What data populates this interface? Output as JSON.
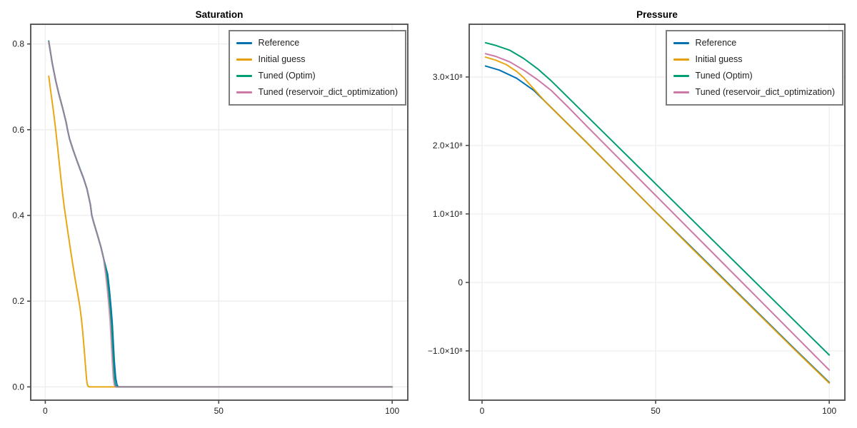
{
  "theme": {
    "background": "#ffffff",
    "spine_color": "#4b4b4b",
    "grid_color": "#ededed",
    "tick_color": "#4b4b4b",
    "text_color": "#1f1f1f",
    "legend_border_color": "#7d7d7d",
    "legend_background": "#ffffff"
  },
  "chart_data": [
    {
      "type": "line",
      "title": "Saturation",
      "xlabel": "",
      "ylabel": "",
      "xlim": [
        -4.2,
        104.5
      ],
      "ylim": [
        -0.031,
        0.846
      ],
      "grid": true,
      "legend_position": "top-right",
      "x_ticks": {
        "values": [
          0,
          50,
          100
        ],
        "labels": [
          "0",
          "50",
          "100"
        ]
      },
      "y_ticks": {
        "values": [
          0.0,
          0.2,
          0.4,
          0.6,
          0.8
        ],
        "labels": [
          "0.0",
          "0.2",
          "0.4",
          "0.6",
          "0.8"
        ]
      },
      "series": [
        {
          "name": "Reference",
          "color": "#0072B2",
          "width": 2,
          "opacity": 1,
          "points": [
            [
              1,
              0.805
            ],
            [
              2,
              0.755
            ],
            [
              3,
              0.714
            ],
            [
              4,
              0.68
            ],
            [
              5,
              0.65
            ],
            [
              6,
              0.617
            ],
            [
              6.4,
              0.6
            ],
            [
              7,
              0.578
            ],
            [
              8,
              0.553
            ],
            [
              9,
              0.53
            ],
            [
              10,
              0.508
            ],
            [
              11,
              0.487
            ],
            [
              12,
              0.462
            ],
            [
              13,
              0.425
            ],
            [
              13.4,
              0.4
            ],
            [
              14,
              0.382
            ],
            [
              15,
              0.355
            ],
            [
              16,
              0.327
            ],
            [
              16.8,
              0.3
            ],
            [
              18.0,
              0.262
            ],
            [
              18.5,
              0.225
            ],
            [
              18.9,
              0.19
            ],
            [
              19.3,
              0.15
            ],
            [
              19.6,
              0.105
            ],
            [
              19.9,
              0.06
            ],
            [
              20.3,
              0.02
            ],
            [
              20.7,
              0.004
            ],
            [
              21.1,
              0
            ],
            [
              30,
              0
            ],
            [
              100,
              0
            ]
          ]
        },
        {
          "name": "Initial guess",
          "color": "#E69F00",
          "width": 2,
          "opacity": 0.92,
          "points": [
            [
              1,
              0.725
            ],
            [
              1.5,
              0.694
            ],
            [
              2,
              0.664
            ],
            [
              2.5,
              0.634
            ],
            [
              3,
              0.6
            ],
            [
              3.5,
              0.563
            ],
            [
              4,
              0.525
            ],
            [
              4.5,
              0.487
            ],
            [
              5,
              0.45
            ],
            [
              5.5,
              0.418
            ],
            [
              6,
              0.39
            ],
            [
              6.5,
              0.362
            ],
            [
              7,
              0.335
            ],
            [
              7.5,
              0.308
            ],
            [
              8,
              0.282
            ],
            [
              8.5,
              0.257
            ],
            [
              9,
              0.233
            ],
            [
              9.5,
              0.21
            ],
            [
              10,
              0.185
            ],
            [
              10.4,
              0.16
            ],
            [
              10.8,
              0.128
            ],
            [
              11.2,
              0.09
            ],
            [
              11.6,
              0.048
            ],
            [
              11.9,
              0.018
            ],
            [
              12.1,
              0.006
            ],
            [
              12.4,
              0.001
            ],
            [
              12.8,
              0
            ],
            [
              20,
              0
            ],
            [
              100,
              0
            ]
          ]
        },
        {
          "name": "Tuned (Optim)",
          "color": "#009E73",
          "width": 2,
          "opacity": 1,
          "points": [
            [
              1,
              0.807
            ],
            [
              2,
              0.756
            ],
            [
              3,
              0.715
            ],
            [
              4,
              0.681
            ],
            [
              5,
              0.651
            ],
            [
              6,
              0.618
            ],
            [
              6.4,
              0.601
            ],
            [
              7,
              0.579
            ],
            [
              8,
              0.554
            ],
            [
              9,
              0.531
            ],
            [
              10,
              0.509
            ],
            [
              11,
              0.488
            ],
            [
              12,
              0.463
            ],
            [
              13,
              0.426
            ],
            [
              13.4,
              0.401
            ],
            [
              14,
              0.383
            ],
            [
              15,
              0.356
            ],
            [
              16,
              0.328
            ],
            [
              16.8,
              0.301
            ],
            [
              17.7,
              0.262
            ],
            [
              18.2,
              0.225
            ],
            [
              18.6,
              0.19
            ],
            [
              19.0,
              0.15
            ],
            [
              19.3,
              0.105
            ],
            [
              19.6,
              0.06
            ],
            [
              19.9,
              0.02
            ],
            [
              20.2,
              0.004
            ],
            [
              20.6,
              0
            ],
            [
              30,
              0
            ],
            [
              100,
              0
            ]
          ]
        },
        {
          "name": "Tuned (reservoir_dict_optimization)",
          "color": "#CC79A7",
          "width": 2,
          "opacity": 0.75,
          "points": [
            [
              1,
              0.805
            ],
            [
              2,
              0.755
            ],
            [
              3,
              0.714
            ],
            [
              4,
              0.68
            ],
            [
              5,
              0.65
            ],
            [
              6,
              0.617
            ],
            [
              6.4,
              0.6
            ],
            [
              7,
              0.578
            ],
            [
              8,
              0.553
            ],
            [
              9,
              0.53
            ],
            [
              10,
              0.508
            ],
            [
              11,
              0.487
            ],
            [
              12,
              0.462
            ],
            [
              13,
              0.425
            ],
            [
              13.4,
              0.4
            ],
            [
              14,
              0.382
            ],
            [
              15,
              0.355
            ],
            [
              16,
              0.327
            ],
            [
              16.8,
              0.3
            ],
            [
              17.4,
              0.262
            ],
            [
              17.9,
              0.225
            ],
            [
              18.3,
              0.19
            ],
            [
              18.7,
              0.15
            ],
            [
              19.0,
              0.105
            ],
            [
              19.3,
              0.06
            ],
            [
              19.6,
              0.02
            ],
            [
              19.9,
              0.004
            ],
            [
              20.3,
              0
            ],
            [
              30,
              0
            ],
            [
              100,
              0
            ]
          ]
        }
      ]
    },
    {
      "type": "line",
      "title": "Pressure",
      "xlabel": "",
      "ylabel": "",
      "xlim": [
        -3.7,
        104.5
      ],
      "ylim": [
        -172000000.0,
        377000000.0
      ],
      "grid": true,
      "legend_position": "top-right",
      "x_ticks": {
        "values": [
          0,
          50,
          100
        ],
        "labels": [
          "0",
          "50",
          "100"
        ]
      },
      "y_ticks": {
        "values": [
          -100000000.0,
          0,
          100000000.0,
          200000000.0,
          300000000.0
        ],
        "labels": [
          "−1.0×10⁸",
          "0",
          "1.0×10⁸",
          "2.0×10⁸",
          "3.0×10⁸"
        ]
      },
      "series": [
        {
          "name": "Reference",
          "color": "#0072B2",
          "width": 2,
          "opacity": 1,
          "points": [
            [
              1,
              316000000.0
            ],
            [
              5,
              310000000.0
            ],
            [
              10,
              298000000.0
            ],
            [
              15,
              280000000.0
            ],
            [
              20,
              255000000.0
            ],
            [
              25,
              230000000.0
            ],
            [
              30,
              205000000.0
            ],
            [
              40,
              154000000.0
            ],
            [
              50,
              103000000.0
            ],
            [
              60,
              53000000.0
            ],
            [
              70,
              3000000.0
            ],
            [
              80,
              -47000000.0
            ],
            [
              90,
              -97000000.0
            ],
            [
              100,
              -146000000.0
            ]
          ]
        },
        {
          "name": "Initial guess",
          "color": "#E69F00",
          "width": 2,
          "opacity": 0.92,
          "points": [
            [
              1,
              329000000.0
            ],
            [
              4,
              324500000.0
            ],
            [
              7,
              318000000.0
            ],
            [
              10,
              308000000.0
            ],
            [
              12,
              299000000.0
            ],
            [
              15,
              282000000.0
            ],
            [
              18,
              265000000.0
            ],
            [
              20,
              255000000.0
            ],
            [
              25,
              230000000.0
            ],
            [
              30,
              205000000.0
            ],
            [
              40,
              154000000.0
            ],
            [
              50,
              103000000.0
            ],
            [
              60,
              52000000.0
            ],
            [
              70,
              2000000.0
            ],
            [
              80,
              -48000000.0
            ],
            [
              90,
              -98000000.0
            ],
            [
              100,
              -147000000.0
            ]
          ]
        },
        {
          "name": "Tuned (Optim)",
          "color": "#009E73",
          "width": 2,
          "opacity": 1,
          "points": [
            [
              1,
              350000000.0
            ],
            [
              4,
              346000000.0
            ],
            [
              8,
              339000000.0
            ],
            [
              12,
              327000000.0
            ],
            [
              16,
              312000000.0
            ],
            [
              20,
              294000000.0
            ],
            [
              25,
              269000000.0
            ],
            [
              30,
              244000000.0
            ],
            [
              40,
              194000000.0
            ],
            [
              50,
              144000000.0
            ],
            [
              60,
              94000000.0
            ],
            [
              70,
              44000000.0
            ],
            [
              80,
              -6000000.0
            ],
            [
              90,
              -56000000.0
            ],
            [
              100,
              -106000000.0
            ]
          ]
        },
        {
          "name": "Tuned (reservoir_dict_optimization)",
          "color": "#CC79A7",
          "width": 2,
          "opacity": 1,
          "points": [
            [
              1,
              334000000.0
            ],
            [
              4,
              330000000.0
            ],
            [
              8,
              322000000.0
            ],
            [
              12,
              310000000.0
            ],
            [
              16,
              296000000.0
            ],
            [
              20,
              280000000.0
            ],
            [
              25,
              255000000.0
            ],
            [
              30,
              229000000.0
            ],
            [
              40,
              178000000.0
            ],
            [
              50,
              127000000.0
            ],
            [
              60,
              76000000.0
            ],
            [
              70,
              25000000.0
            ],
            [
              80,
              -26000000.0
            ],
            [
              90,
              -77000000.0
            ],
            [
              100,
              -128000000.0
            ]
          ]
        }
      ]
    }
  ]
}
